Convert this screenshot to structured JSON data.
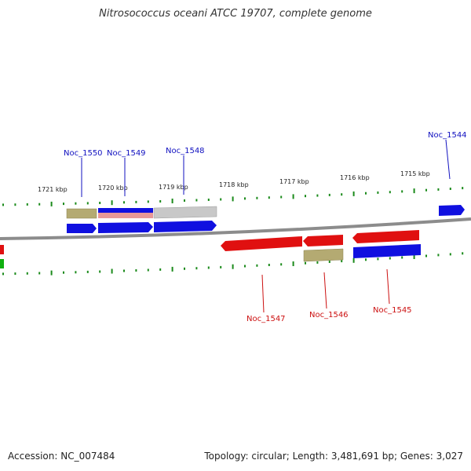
{
  "title": "Nitrosococcus oceani ATCC 19707, complete genome",
  "footer": {
    "accession": "Accession: NC_007484",
    "stats": "Topology: circular; Length: 3,481,691 bp; Genes: 3,027"
  },
  "colors": {
    "backbone": "#8c8c8c",
    "tick": "#1a8a1a",
    "forward_label": "#1010c0",
    "reverse_label": "#cc1010",
    "cds_forward": "#1010e0",
    "cds_reverse": "#e01010",
    "gene_khaki": "#b4aa72",
    "gene_gray": "#c8c8c8",
    "gene_pink": "#e89898",
    "gene_green": "#10b010"
  },
  "scale_labels": [
    "1721 kbp",
    "1720 kbp",
    "1719 kbp",
    "1718 kbp",
    "1717 kbp",
    "1716 kbp",
    "1715 kbp"
  ],
  "forward_genes": [
    "Noc_1550",
    "Noc_1549",
    "Noc_1548",
    "Noc_1544"
  ],
  "reverse_genes": [
    "Noc_1547",
    "Noc_1546",
    "Noc_1545"
  ]
}
